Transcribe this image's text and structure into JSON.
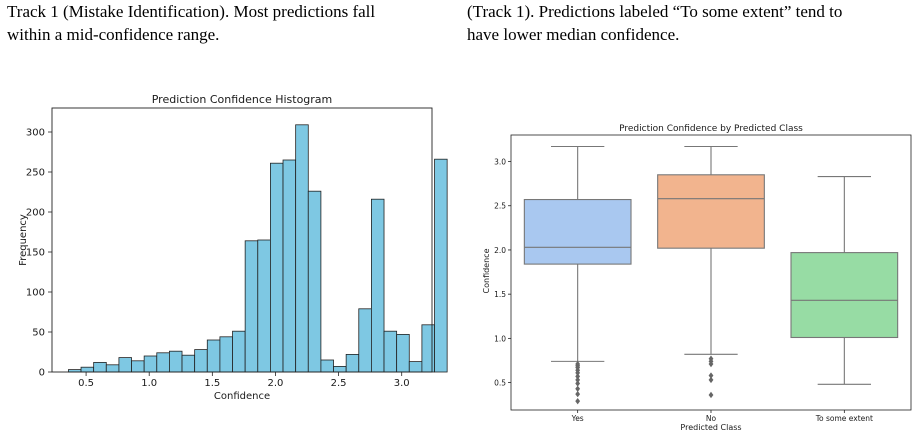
{
  "captions": {
    "left": [
      "Track 1 (Mistake Identification). Most predictions fall",
      "within a mid-confidence range."
    ],
    "right": [
      "(Track 1). Predictions labeled “To some extent” tend to",
      "have lower median confidence."
    ]
  },
  "chart_data": [
    {
      "type": "histogram",
      "title": "Prediction Confidence Histogram",
      "xlabel": "Confidence",
      "ylabel": "Frequency",
      "xlim": [
        0.23,
        3.24
      ],
      "ylim": [
        0,
        330
      ],
      "xticks": [
        0.5,
        1.0,
        1.5,
        2.0,
        2.5,
        3.0
      ],
      "xtick_labels": [
        "0.5",
        "1.0",
        "1.5",
        "2.0",
        "2.5",
        "3.0"
      ],
      "yticks": [
        0,
        50,
        100,
        150,
        200,
        250,
        300
      ],
      "ytick_labels": [
        "0",
        "50",
        "100",
        "150",
        "200",
        "250",
        "300"
      ],
      "bin_start": 0.36,
      "bin_width": 0.1,
      "counts": [
        3,
        6,
        12,
        9,
        18,
        14,
        20,
        24,
        26,
        21,
        28,
        40,
        44,
        51,
        164,
        165,
        261,
        265,
        309,
        226,
        15,
        7,
        22,
        79,
        216,
        51,
        47,
        13,
        59,
        266
      ],
      "bar_color": "#7ec8e3",
      "edge_color": "#222222",
      "grid": false
    },
    {
      "type": "box",
      "title": "Prediction Confidence by Predicted Class",
      "xlabel": "Predicted Class",
      "ylabel": "Confidence",
      "ylim": [
        0.19,
        3.3
      ],
      "yticks": [
        0.5,
        1.0,
        1.5,
        2.0,
        2.5,
        3.0
      ],
      "ytick_labels": [
        "0.5",
        "1.0",
        "1.5",
        "2.0",
        "2.5",
        "3.0"
      ],
      "categories": [
        "Yes",
        "No",
        "To some extent"
      ],
      "boxes": [
        {
          "whisker_low": 0.74,
          "q1": 1.84,
          "median": 2.03,
          "q3": 2.57,
          "whisker_high": 3.17,
          "outliers": [
            0.29,
            0.37,
            0.43,
            0.49,
            0.53,
            0.57,
            0.61,
            0.64,
            0.67,
            0.69,
            0.71
          ],
          "color": "#a9c8f0"
        },
        {
          "whisker_low": 0.82,
          "q1": 2.02,
          "median": 2.58,
          "q3": 2.85,
          "whisker_high": 3.17,
          "outliers": [
            0.36,
            0.53,
            0.58,
            0.71,
            0.74,
            0.77
          ],
          "color": "#f2b48e"
        },
        {
          "whisker_low": 0.48,
          "q1": 1.01,
          "median": 1.43,
          "q3": 1.97,
          "whisker_high": 2.83,
          "outliers": [],
          "color": "#97dca4"
        }
      ],
      "grid": false
    }
  ]
}
